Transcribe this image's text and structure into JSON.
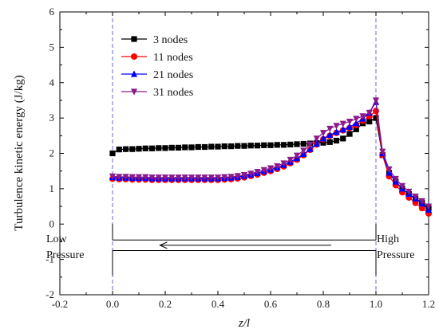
{
  "chart_data": {
    "type": "line",
    "xlabel": "z/l",
    "ylabel": "Turbulence kinetic energy (J/kg)",
    "xlim": [
      -0.2,
      1.2
    ],
    "ylim": [
      -2,
      6
    ],
    "xticks": [
      "-0.2",
      "0.0",
      "0.2",
      "0.4",
      "0.6",
      "0.8",
      "1.0",
      "1.2"
    ],
    "yticks": [
      "-2",
      "-1",
      "0",
      "1",
      "2",
      "3",
      "4",
      "5",
      "6"
    ],
    "grid": false,
    "legend_position": "top-left",
    "reference_lines_x": [
      0.0,
      1.0
    ],
    "annotations": {
      "low": [
        "Low",
        "Pressure"
      ],
      "high": [
        "High",
        "Pressure"
      ]
    },
    "series": [
      {
        "name": "3 nodes",
        "color": "#000000",
        "marker": "square",
        "x": [
          0.0,
          0.025,
          0.05,
          0.075,
          0.1,
          0.125,
          0.15,
          0.175,
          0.2,
          0.225,
          0.25,
          0.275,
          0.3,
          0.325,
          0.35,
          0.375,
          0.4,
          0.425,
          0.45,
          0.475,
          0.5,
          0.525,
          0.55,
          0.575,
          0.6,
          0.625,
          0.65,
          0.675,
          0.7,
          0.725,
          0.75,
          0.775,
          0.8,
          0.825,
          0.85,
          0.875,
          0.9,
          0.925,
          0.95,
          0.975,
          1.0,
          1.025,
          1.05,
          1.075,
          1.1,
          1.125,
          1.15,
          1.175,
          1.2
        ],
        "y": [
          2.0,
          2.11,
          2.12,
          2.12,
          2.13,
          2.14,
          2.14,
          2.15,
          2.15,
          2.16,
          2.16,
          2.17,
          2.17,
          2.18,
          2.18,
          2.19,
          2.19,
          2.2,
          2.2,
          2.21,
          2.21,
          2.22,
          2.22,
          2.23,
          2.23,
          2.24,
          2.24,
          2.25,
          2.26,
          2.27,
          2.28,
          2.29,
          2.3,
          2.32,
          2.36,
          2.42,
          2.55,
          2.68,
          2.85,
          2.9,
          3.0,
          1.95,
          1.45,
          1.2,
          1.0,
          0.85,
          0.72,
          0.6,
          0.45
        ]
      },
      {
        "name": "11 nodes",
        "color": "#ff0000",
        "marker": "circle",
        "x": [
          0.0,
          0.025,
          0.05,
          0.075,
          0.1,
          0.125,
          0.15,
          0.175,
          0.2,
          0.225,
          0.25,
          0.275,
          0.3,
          0.325,
          0.35,
          0.375,
          0.4,
          0.425,
          0.45,
          0.475,
          0.5,
          0.525,
          0.55,
          0.575,
          0.6,
          0.625,
          0.65,
          0.675,
          0.7,
          0.725,
          0.75,
          0.775,
          0.8,
          0.825,
          0.85,
          0.875,
          0.9,
          0.925,
          0.95,
          0.975,
          1.0,
          1.025,
          1.05,
          1.075,
          1.1,
          1.125,
          1.15,
          1.175,
          1.2
        ],
        "y": [
          1.28,
          1.27,
          1.27,
          1.26,
          1.26,
          1.26,
          1.25,
          1.25,
          1.25,
          1.25,
          1.25,
          1.25,
          1.25,
          1.25,
          1.25,
          1.25,
          1.25,
          1.26,
          1.27,
          1.29,
          1.32,
          1.36,
          1.4,
          1.45,
          1.5,
          1.56,
          1.63,
          1.72,
          1.82,
          1.95,
          2.1,
          2.25,
          2.4,
          2.5,
          2.58,
          2.65,
          2.72,
          2.8,
          2.92,
          3.05,
          3.2,
          1.95,
          1.35,
          1.1,
          0.9,
          0.75,
          0.6,
          0.45,
          0.3
        ]
      },
      {
        "name": "21 nodes",
        "color": "#0000ff",
        "marker": "triangle-up",
        "x": [
          0.0,
          0.025,
          0.05,
          0.075,
          0.1,
          0.125,
          0.15,
          0.175,
          0.2,
          0.225,
          0.25,
          0.275,
          0.3,
          0.325,
          0.35,
          0.375,
          0.4,
          0.425,
          0.45,
          0.475,
          0.5,
          0.525,
          0.55,
          0.575,
          0.6,
          0.625,
          0.65,
          0.675,
          0.7,
          0.725,
          0.75,
          0.775,
          0.8,
          0.825,
          0.85,
          0.875,
          0.9,
          0.925,
          0.95,
          0.975,
          1.0,
          1.025,
          1.05,
          1.075,
          1.1,
          1.125,
          1.15,
          1.175,
          1.2
        ],
        "y": [
          1.32,
          1.31,
          1.31,
          1.3,
          1.3,
          1.3,
          1.29,
          1.29,
          1.29,
          1.29,
          1.29,
          1.29,
          1.29,
          1.29,
          1.29,
          1.29,
          1.29,
          1.3,
          1.31,
          1.33,
          1.36,
          1.4,
          1.44,
          1.49,
          1.54,
          1.6,
          1.67,
          1.76,
          1.86,
          1.98,
          2.12,
          2.27,
          2.42,
          2.52,
          2.6,
          2.67,
          2.75,
          2.85,
          2.98,
          3.15,
          3.45,
          2.0,
          1.45,
          1.2,
          1.0,
          0.85,
          0.72,
          0.58,
          0.4
        ]
      },
      {
        "name": "31 nodes",
        "color": "#8b1a8b",
        "marker": "triangle-down",
        "x": [
          0.0,
          0.025,
          0.05,
          0.075,
          0.1,
          0.125,
          0.15,
          0.175,
          0.2,
          0.225,
          0.25,
          0.275,
          0.3,
          0.325,
          0.35,
          0.375,
          0.4,
          0.425,
          0.45,
          0.475,
          0.5,
          0.525,
          0.55,
          0.575,
          0.6,
          0.625,
          0.65,
          0.675,
          0.7,
          0.725,
          0.75,
          0.775,
          0.8,
          0.825,
          0.85,
          0.875,
          0.9,
          0.925,
          0.95,
          0.975,
          1.0,
          1.025,
          1.05,
          1.075,
          1.1,
          1.125,
          1.15,
          1.175,
          1.2
        ],
        "y": [
          1.35,
          1.34,
          1.34,
          1.33,
          1.33,
          1.33,
          1.32,
          1.32,
          1.32,
          1.32,
          1.32,
          1.32,
          1.32,
          1.32,
          1.32,
          1.32,
          1.32,
          1.33,
          1.34,
          1.36,
          1.39,
          1.43,
          1.48,
          1.53,
          1.58,
          1.64,
          1.72,
          1.82,
          1.94,
          2.08,
          2.25,
          2.42,
          2.58,
          2.7,
          2.78,
          2.84,
          2.9,
          2.98,
          3.05,
          3.15,
          3.5,
          2.05,
          1.55,
          1.28,
          1.08,
          0.92,
          0.78,
          0.65,
          0.5
        ]
      }
    ]
  }
}
